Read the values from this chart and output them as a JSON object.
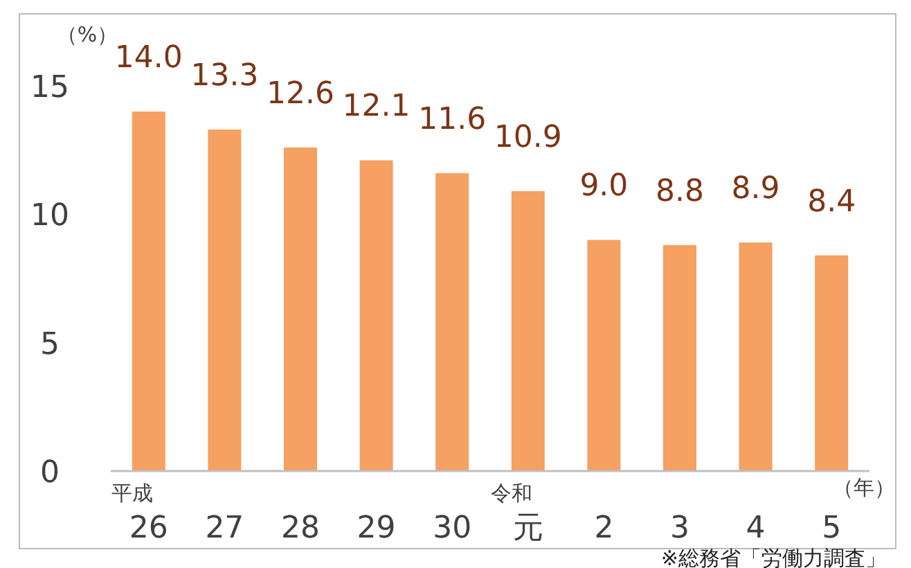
{
  "chart_data": {
    "type": "bar",
    "ylabel": "（%）",
    "xlabel": "（年）",
    "categories": [
      "平成26",
      "27",
      "28",
      "29",
      "30",
      "令和元",
      "2",
      "3",
      "4",
      "5"
    ],
    "values": [
      14.0,
      13.3,
      12.6,
      12.1,
      11.6,
      10.9,
      9.0,
      8.8,
      8.9,
      8.4
    ],
    "value_labels": [
      "14.0",
      "13.3",
      "12.6",
      "12.1",
      "11.6",
      "10.9",
      "9.0",
      "8.8",
      "8.9",
      "8.4"
    ],
    "color": "#f6a062",
    "ylim": [
      0,
      15
    ],
    "yticks": [
      0,
      5,
      10,
      15
    ],
    "grid": false,
    "annotations": [
      "※総務省「労働力調査」"
    ]
  }
}
